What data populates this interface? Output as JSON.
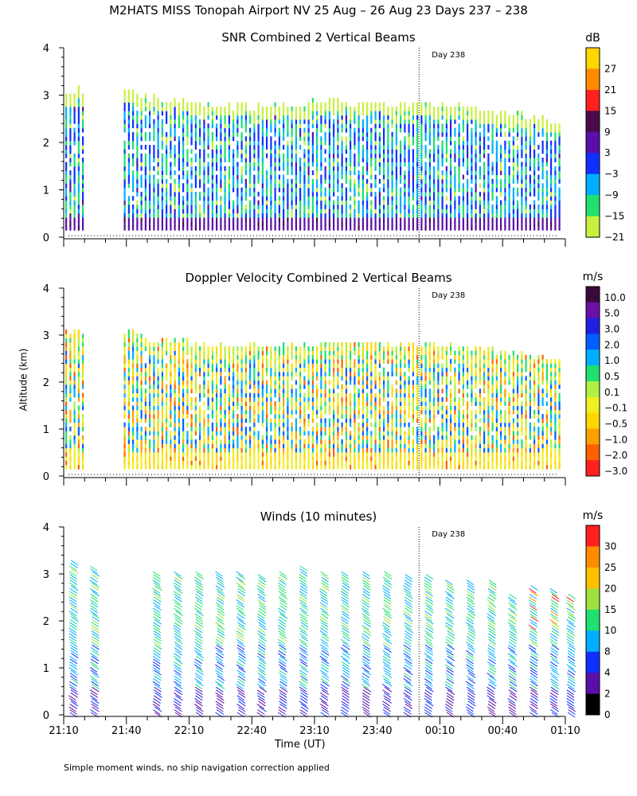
{
  "figure": {
    "title": "M2HATS MISS Tonopah Airport NV  25 Aug – 26 Aug 23 Days 237 – 238",
    "x_axis_label": "Time (UT)",
    "y_axis_label": "Altitude (km)",
    "footnote": "Simple moment winds, no ship navigation correction applied",
    "day_marker_label": "Day 238",
    "x_ticks": [
      "21:10",
      "21:40",
      "22:10",
      "22:40",
      "23:10",
      "23:40",
      "00:10",
      "00:40",
      "01:10"
    ],
    "y_ticks": [
      "0",
      "1",
      "2",
      "3",
      "4"
    ]
  },
  "chart_data": [
    {
      "type": "heatmap",
      "title": "SNR Combined 2 Vertical Beams",
      "ylabel": "Altitude (km)",
      "xlabel": "Time (UT)",
      "ylim": [
        0,
        4
      ],
      "colorbar_unit": "dB",
      "colorbar_labels": [
        "27",
        "21",
        "15",
        "9",
        "3",
        "−3",
        "−9",
        "−15",
        "−21"
      ],
      "colors": [
        "#ffd700",
        "#ff8c00",
        "#ff2020",
        "#4b0a4b",
        "#5a10a8",
        "#1030ff",
        "#00b0ff",
        "#20e070",
        "#c8f040",
        "#ffffff"
      ],
      "day_marker_time": "00:00",
      "echo_top_km": {
        "times": [
          "21:10",
          "21:20",
          "21:40",
          "21:50",
          "22:00",
          "22:10",
          "22:20",
          "22:30",
          "22:40",
          "22:50",
          "23:00",
          "23:10",
          "23:20",
          "23:30",
          "23:40",
          "23:50",
          "00:00",
          "00:10",
          "00:20",
          "00:30",
          "00:40",
          "00:50",
          "01:00",
          "01:07"
        ],
        "values": [
          3.05,
          3.05,
          3.05,
          2.9,
          2.9,
          2.8,
          2.75,
          2.7,
          2.7,
          2.75,
          2.75,
          2.8,
          2.8,
          2.8,
          2.8,
          2.75,
          2.75,
          2.75,
          2.7,
          2.65,
          2.6,
          2.55,
          2.45,
          2.4
        ]
      },
      "data_gap": [
        "21:20",
        "21:37"
      ]
    },
    {
      "type": "heatmap",
      "title": "Doppler Velocity Combined 2 Vertical Beams",
      "ylabel": "Altitude (km)",
      "xlabel": "Time (UT)",
      "ylim": [
        0,
        4
      ],
      "colorbar_unit": "m/s",
      "colorbar_labels": [
        "10.0",
        "5.0",
        "3.0",
        "2.0",
        "1.0",
        "0.5",
        "0.1",
        "−0.1",
        "−0.5",
        "−1.0",
        "−2.0",
        "−3.0"
      ],
      "colors": [
        "#3a0a3a",
        "#6a10a8",
        "#2020e0",
        "#0060ff",
        "#00b0ff",
        "#20e070",
        "#b0f040",
        "#f0f020",
        "#ffd700",
        "#ffa000",
        "#ff6000",
        "#ff2020"
      ],
      "day_marker_time": "00:00",
      "echo_top_km": {
        "times": [
          "21:10",
          "21:20",
          "21:40",
          "21:50",
          "22:00",
          "22:10",
          "22:20",
          "22:30",
          "22:40",
          "22:50",
          "23:00",
          "23:10",
          "23:20",
          "23:30",
          "23:40",
          "23:50",
          "00:00",
          "00:10",
          "00:20",
          "00:30",
          "00:40",
          "00:50",
          "01:00",
          "01:07"
        ],
        "values": [
          3.05,
          3.05,
          3.05,
          2.9,
          2.9,
          2.8,
          2.75,
          2.7,
          2.7,
          2.75,
          2.75,
          2.8,
          2.8,
          2.8,
          2.8,
          2.75,
          2.75,
          2.75,
          2.7,
          2.65,
          2.6,
          2.55,
          2.45,
          2.4
        ]
      },
      "data_gap": [
        "21:20",
        "21:37"
      ]
    },
    {
      "type": "scatter",
      "title": "Winds (10 minutes)",
      "ylabel": "Altitude (km)",
      "xlabel": "Time (UT)",
      "ylim": [
        0,
        4
      ],
      "colorbar_unit": "m/s",
      "colorbar_labels": [
        "30",
        "25",
        "20",
        "15",
        "10",
        "8",
        "4",
        "2",
        "0"
      ],
      "colors": [
        "#ff2020",
        "#ff8c00",
        "#ffc000",
        "#a0e040",
        "#20e070",
        "#00b0ff",
        "#1030ff",
        "#5a10a8",
        "#000000"
      ],
      "day_marker_time": "00:00",
      "profile_times": [
        "21:10",
        "21:20",
        "21:50",
        "22:00",
        "22:10",
        "22:20",
        "22:30",
        "22:40",
        "22:50",
        "23:00",
        "23:10",
        "23:20",
        "23:30",
        "23:40",
        "23:50",
        "00:00",
        "00:10",
        "00:20",
        "00:30",
        "00:40",
        "00:50",
        "01:00",
        "01:08"
      ],
      "profile_tops_km": [
        3.3,
        3.2,
        3.1,
        3.1,
        3.1,
        3.1,
        3.1,
        3.0,
        3.1,
        3.2,
        3.1,
        3.1,
        3.1,
        3.1,
        3.0,
        3.0,
        2.9,
        2.9,
        2.9,
        2.6,
        2.8,
        2.7,
        2.6
      ]
    }
  ]
}
